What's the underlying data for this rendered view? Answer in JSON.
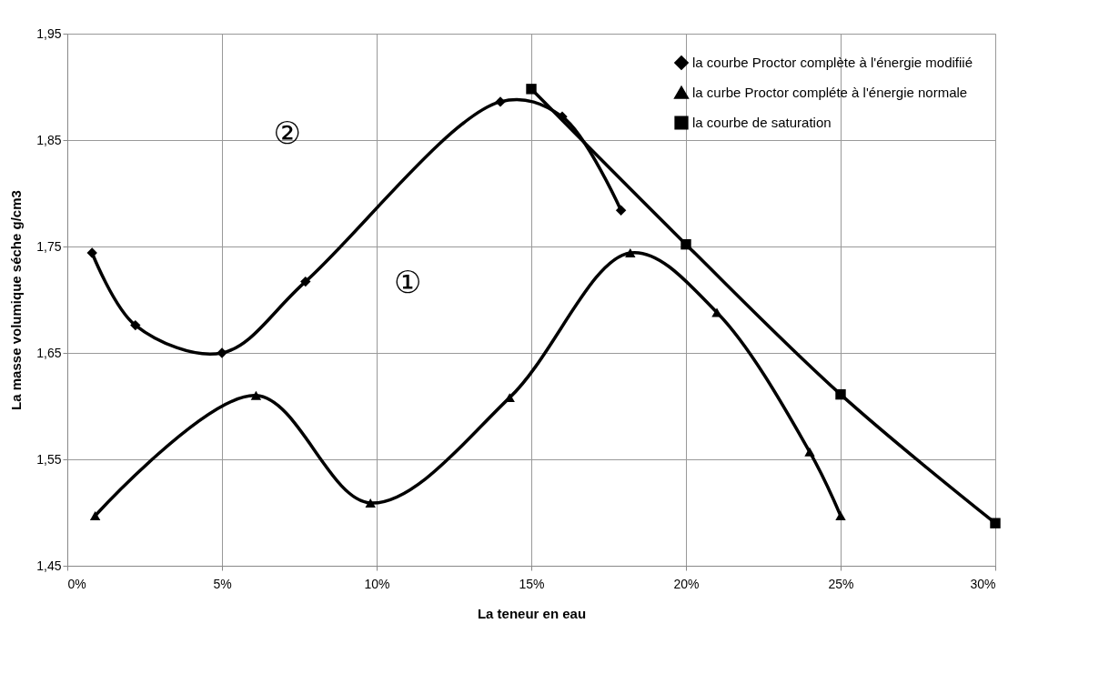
{
  "chart_data": {
    "type": "line",
    "xlabel": "La teneur en eau",
    "ylabel": "La masse volumique séche g/cm3",
    "xlim": [
      0,
      30
    ],
    "ylim": [
      1.45,
      1.95
    ],
    "xticks": [
      {
        "value": 0,
        "label": "0%"
      },
      {
        "value": 5,
        "label": "5%"
      },
      {
        "value": 10,
        "label": "10%"
      },
      {
        "value": 15,
        "label": "15%"
      },
      {
        "value": 20,
        "label": "20%"
      },
      {
        "value": 25,
        "label": "25%"
      },
      {
        "value": 30,
        "label": "30%"
      }
    ],
    "yticks": [
      {
        "value": 1.45,
        "label": "1,45"
      },
      {
        "value": 1.55,
        "label": "1,55"
      },
      {
        "value": 1.65,
        "label": "1,65"
      },
      {
        "value": 1.75,
        "label": "1,75"
      },
      {
        "value": 1.85,
        "label": "1,85"
      },
      {
        "value": 1.95,
        "label": "1,95"
      }
    ],
    "grid": true,
    "legend": "top right",
    "line_style": "solid",
    "series": [
      {
        "name": "la courbe Proctor complète à l'énergie modifiié",
        "color": "#000000",
        "marker": "diamond",
        "x": [
          0.8,
          2.2,
          5,
          7.7,
          14,
          16,
          17.9
        ],
        "values": [
          1.744,
          1.676,
          1.65,
          1.717,
          1.886,
          1.872,
          1.784
        ]
      },
      {
        "name": "la curbe Proctor compléte à l'énergie normale",
        "color": "#000000",
        "marker": "triangle",
        "x": [
          0.9,
          6.1,
          9.8,
          14.3,
          18.2,
          21,
          24,
          25
        ],
        "values": [
          1.497,
          1.61,
          1.509,
          1.608,
          1.744,
          1.688,
          1.557,
          1.497
        ]
      },
      {
        "name": "la courbe de saturation",
        "color": "#000000",
        "marker": "square",
        "x": [
          15,
          20,
          25,
          30
        ],
        "values": [
          1.898,
          1.752,
          1.611,
          1.49
        ]
      }
    ],
    "annotations": [
      "②",
      "①"
    ]
  }
}
